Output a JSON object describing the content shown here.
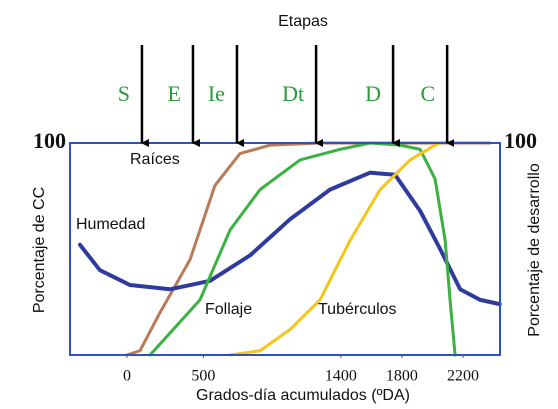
{
  "chart_data": {
    "type": "line",
    "title": "Etapas",
    "xlabel": "Grados-día acumulados (ºDA)",
    "ylabel": "Porcentaje de CC",
    "y2label": "Porcentaje de desarrollo",
    "xlim": [
      -373,
      2442
    ],
    "xticks": [
      0,
      500,
      1400,
      1800,
      2200
    ],
    "ylim": [
      0,
      100
    ],
    "yticks": [
      100
    ],
    "y2lim": [
      0,
      100
    ],
    "y2ticks": [
      100
    ],
    "stages": [
      {
        "label": "S",
        "x": 98
      },
      {
        "label": "E",
        "x": 432
      },
      {
        "label": "Ie",
        "x": 720
      },
      {
        "label": "Dt",
        "x": 1238
      },
      {
        "label": "D",
        "x": 1742
      },
      {
        "label": "C",
        "x": 2096
      }
    ],
    "series": [
      {
        "name": "Raíces",
        "color": "#b97a58",
        "x": [
          0,
          85,
          216,
          413,
          576,
          740,
          936,
          1264,
          2377
        ],
        "values": [
          0,
          2,
          20,
          45,
          80,
          95,
          99,
          100,
          100
        ]
      },
      {
        "name": "Humedad",
        "color": "#2f3c9e",
        "x": [
          -308,
          -177,
          20,
          282,
          544,
          806,
          1067,
          1329,
          1591,
          1755,
          1919,
          2050,
          2181,
          2312,
          2440
        ],
        "values": [
          52,
          40,
          33,
          31,
          35,
          47,
          64,
          78,
          86,
          85,
          68,
          50,
          31,
          26,
          24
        ]
      },
      {
        "name": "Follaje",
        "color": "#3cb043",
        "x": [
          151,
          478,
          675,
          871,
          1133,
          1395,
          1591,
          1788,
          1919,
          2017,
          2083,
          2115,
          2148
        ],
        "values": [
          0,
          26,
          59,
          78,
          92,
          97,
          100,
          99,
          97,
          83,
          54,
          26,
          0
        ]
      },
      {
        "name": "Tubérculos",
        "color": "#f5c518",
        "x": [
          675,
          871,
          1067,
          1264,
          1460,
          1657,
          1853,
          2017,
          2050
        ],
        "values": [
          0,
          2,
          12,
          26,
          54,
          78,
          92,
          99,
          100
        ]
      }
    ]
  }
}
